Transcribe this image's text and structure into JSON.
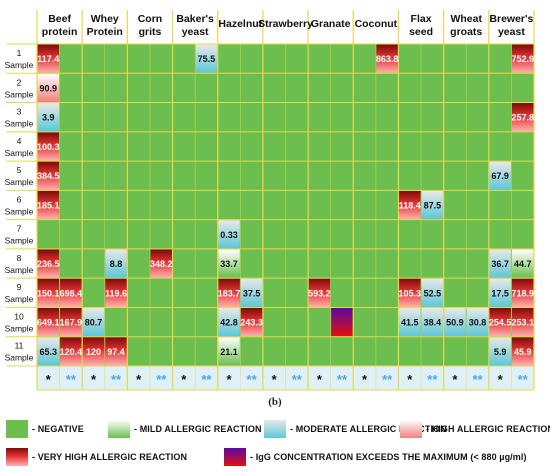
{
  "chart_data": {
    "type": "heatmap",
    "categories": [
      "Beef protein",
      "Whey Protein",
      "Corn grits",
      "Baker's yeast",
      "Hazelnut",
      "Strawberry",
      "Granate",
      "Coconut",
      "Flax seed",
      "Wheat groats",
      "Brewer's yeast"
    ],
    "category_lines": [
      [
        "Beef",
        "protein"
      ],
      [
        "Whey",
        "Protein"
      ],
      [
        "Corn",
        "grits"
      ],
      [
        "Baker's",
        "yeast"
      ],
      [
        "Hazelnut"
      ],
      [
        "Strawberry"
      ],
      [
        "Granate"
      ],
      [
        "Coconut"
      ],
      [
        "Flax",
        "seed"
      ],
      [
        "Wheat",
        "groats"
      ],
      [
        "Brewer's",
        "yeast"
      ]
    ],
    "rows": [
      {
        "num": "1",
        "label": "Sample"
      },
      {
        "num": "2",
        "label": "Sample"
      },
      {
        "num": "3",
        "label": "Sample"
      },
      {
        "num": "4",
        "label": "Sample"
      },
      {
        "num": "5",
        "label": "Sample"
      },
      {
        "num": "6",
        "label": "Sample"
      },
      {
        "num": "7",
        "label": "Sample"
      },
      {
        "num": "8",
        "label": "Sample"
      },
      {
        "num": "9",
        "label": "Sample"
      },
      {
        "num": "10",
        "label": "Sample"
      },
      {
        "num": "11",
        "label": "Sample"
      }
    ],
    "subcolumn_markers": [
      "*",
      "**"
    ],
    "cells": [
      {
        "row": 0,
        "col": 0,
        "sub": 0,
        "value": "117.4",
        "level": "very_high"
      },
      {
        "row": 0,
        "col": 3,
        "sub": 1,
        "value": "75.5",
        "level": "moderate"
      },
      {
        "row": 0,
        "col": 7,
        "sub": 1,
        "value": "863.8",
        "level": "very_high"
      },
      {
        "row": 0,
        "col": 10,
        "sub": 1,
        "value": "752.9",
        "level": "very_high"
      },
      {
        "row": 1,
        "col": 0,
        "sub": 0,
        "value": "90.9",
        "level": "high"
      },
      {
        "row": 2,
        "col": 0,
        "sub": 0,
        "value": "3.9",
        "level": "moderate"
      },
      {
        "row": 2,
        "col": 10,
        "sub": 1,
        "value": "257.8",
        "level": "very_high"
      },
      {
        "row": 3,
        "col": 0,
        "sub": 0,
        "value": "100.3",
        "level": "very_high"
      },
      {
        "row": 4,
        "col": 0,
        "sub": 0,
        "value": "384.5",
        "level": "very_high"
      },
      {
        "row": 4,
        "col": 10,
        "sub": 0,
        "value": "67.9",
        "level": "moderate"
      },
      {
        "row": 5,
        "col": 0,
        "sub": 0,
        "value": "185.1",
        "level": "very_high"
      },
      {
        "row": 5,
        "col": 8,
        "sub": 0,
        "value": "118.4",
        "level": "very_high"
      },
      {
        "row": 5,
        "col": 8,
        "sub": 1,
        "value": "87.5",
        "level": "moderate"
      },
      {
        "row": 6,
        "col": 4,
        "sub": 0,
        "value": "0.33",
        "level": "moderate"
      },
      {
        "row": 7,
        "col": 0,
        "sub": 0,
        "value": "236.5",
        "level": "very_high"
      },
      {
        "row": 7,
        "col": 1,
        "sub": 1,
        "value": "8.8",
        "level": "moderate"
      },
      {
        "row": 7,
        "col": 2,
        "sub": 1,
        "value": "348.2",
        "level": "very_high"
      },
      {
        "row": 7,
        "col": 4,
        "sub": 0,
        "value": "33.7",
        "level": "mild"
      },
      {
        "row": 7,
        "col": 10,
        "sub": 0,
        "value": "36.7",
        "level": "moderate"
      },
      {
        "row": 7,
        "col": 10,
        "sub": 1,
        "value": "44.7",
        "level": "mild"
      },
      {
        "row": 8,
        "col": 0,
        "sub": 0,
        "value": "150.1",
        "level": "very_high"
      },
      {
        "row": 8,
        "col": 0,
        "sub": 1,
        "value": "698.4",
        "level": "very_high"
      },
      {
        "row": 8,
        "col": 1,
        "sub": 1,
        "value": "119.6",
        "level": "very_high"
      },
      {
        "row": 8,
        "col": 4,
        "sub": 0,
        "value": "183.7",
        "level": "very_high"
      },
      {
        "row": 8,
        "col": 4,
        "sub": 1,
        "value": "37.5",
        "level": "moderate"
      },
      {
        "row": 8,
        "col": 6,
        "sub": 0,
        "value": "593.2",
        "level": "very_high"
      },
      {
        "row": 8,
        "col": 8,
        "sub": 0,
        "value": "105.3",
        "level": "very_high"
      },
      {
        "row": 8,
        "col": 8,
        "sub": 1,
        "value": "52.5",
        "level": "moderate"
      },
      {
        "row": 8,
        "col": 10,
        "sub": 0,
        "value": "17.5",
        "level": "moderate"
      },
      {
        "row": 8,
        "col": 10,
        "sub": 1,
        "value": "718.9",
        "level": "very_high"
      },
      {
        "row": 9,
        "col": 0,
        "sub": 0,
        "value": "649.1",
        "level": "very_high"
      },
      {
        "row": 9,
        "col": 0,
        "sub": 1,
        "value": "167.9",
        "level": "very_high"
      },
      {
        "row": 9,
        "col": 1,
        "sub": 0,
        "value": "80.7",
        "level": "moderate"
      },
      {
        "row": 9,
        "col": 4,
        "sub": 0,
        "value": "42.8",
        "level": "moderate"
      },
      {
        "row": 9,
        "col": 4,
        "sub": 1,
        "value": "243.3",
        "level": "very_high"
      },
      {
        "row": 9,
        "col": 6,
        "sub": 1,
        "value": "",
        "level": "exceeds"
      },
      {
        "row": 9,
        "col": 8,
        "sub": 0,
        "value": "41.5",
        "level": "moderate"
      },
      {
        "row": 9,
        "col": 8,
        "sub": 1,
        "value": "38.4",
        "level": "moderate"
      },
      {
        "row": 9,
        "col": 9,
        "sub": 0,
        "value": "50.9",
        "level": "moderate"
      },
      {
        "row": 9,
        "col": 9,
        "sub": 1,
        "value": "30.8",
        "level": "moderate"
      },
      {
        "row": 9,
        "col": 10,
        "sub": 0,
        "value": "254.5",
        "level": "very_high"
      },
      {
        "row": 9,
        "col": 10,
        "sub": 1,
        "value": "253.1",
        "level": "very_high"
      },
      {
        "row": 10,
        "col": 0,
        "sub": 0,
        "value": "65.3",
        "level": "moderate"
      },
      {
        "row": 10,
        "col": 0,
        "sub": 1,
        "value": "120.4",
        "level": "very_high"
      },
      {
        "row": 10,
        "col": 1,
        "sub": 0,
        "value": "120",
        "level": "very_high"
      },
      {
        "row": 10,
        "col": 1,
        "sub": 1,
        "value": "97.4",
        "level": "very_high"
      },
      {
        "row": 10,
        "col": 4,
        "sub": 0,
        "value": "21.1",
        "level": "mild"
      },
      {
        "row": 10,
        "col": 10,
        "sub": 0,
        "value": "5.9",
        "level": "moderate"
      },
      {
        "row": 10,
        "col": 10,
        "sub": 1,
        "value": "45.9",
        "level": "very_high"
      }
    ],
    "subfigure_label": "(b)",
    "legend": [
      {
        "key": "negative",
        "label": "- NEGATIVE"
      },
      {
        "key": "mild",
        "label": "- MILD ALLERGIC REACTION"
      },
      {
        "key": "moderate",
        "label": "- MODERATE ALLERGIC REACTION"
      },
      {
        "key": "high",
        "label": "- HIGH ALLERGIC REACTION"
      },
      {
        "key": "very_high",
        "label": "- VERY HIGH ALLERGIC REACTION"
      },
      {
        "key": "exceeds",
        "label": "- IgG CONCENTRATION EXCEEDS THE MAXIMUM (< 880 µg/ml)"
      }
    ],
    "colors": {
      "negative": "#6cbf4f",
      "grid_line": "#e8d84a",
      "mild_top": "#ffffff",
      "mild_bottom": "#6cbf4f",
      "moderate_top": "#e8e8e8",
      "moderate_bottom": "#5cc8d8",
      "high_top": "#ffffff",
      "high_bottom": "#f08080",
      "very_high_top": "#7a0b0b",
      "very_high_mid": "#e53232",
      "very_high_bottom": "#ffb0b0",
      "exceeds_top": "#5a0aa0",
      "exceeds_bottom": "#e01010",
      "header_bg": "#ffffff",
      "single_marker": "#111111",
      "double_marker": "#4aa8e8"
    }
  }
}
